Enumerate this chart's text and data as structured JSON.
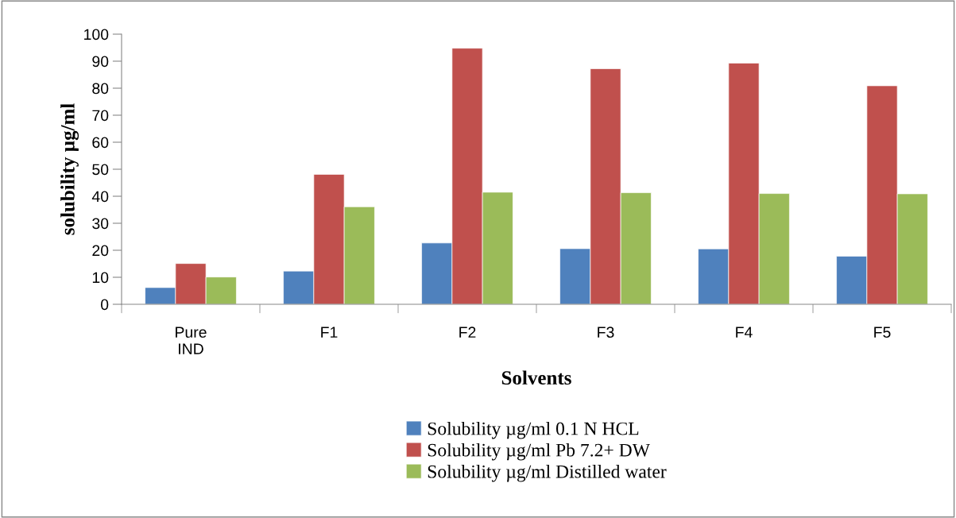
{
  "chart_data": {
    "type": "bar",
    "xlabel": "Solvents",
    "ylabel": "solubility µg/ml",
    "categories": [
      "Pure\nIND",
      "F1",
      "F2",
      "F3",
      "F4",
      "F5"
    ],
    "series": [
      {
        "name": "Solubility µg/ml 0.1 N HCL",
        "color": "#4f81bd",
        "values": [
          6.2,
          12.3,
          22.7,
          20.6,
          20.5,
          17.8
        ]
      },
      {
        "name": "Solubility µg/ml Pb 7.2+ DW",
        "color": "#c0504d",
        "values": [
          15.1,
          48.1,
          94.8,
          87.2,
          89.3,
          80.9
        ]
      },
      {
        "name": "Solubility µg/ml Distilled water",
        "color": "#9bbb59",
        "values": [
          10.1,
          36.1,
          41.5,
          41.3,
          41.0,
          40.9
        ]
      }
    ],
    "ylim": [
      0,
      100
    ],
    "yticks": [
      0,
      10,
      20,
      30,
      40,
      50,
      60,
      70,
      80,
      90,
      100
    ],
    "grid": false,
    "legend": "bottom"
  }
}
